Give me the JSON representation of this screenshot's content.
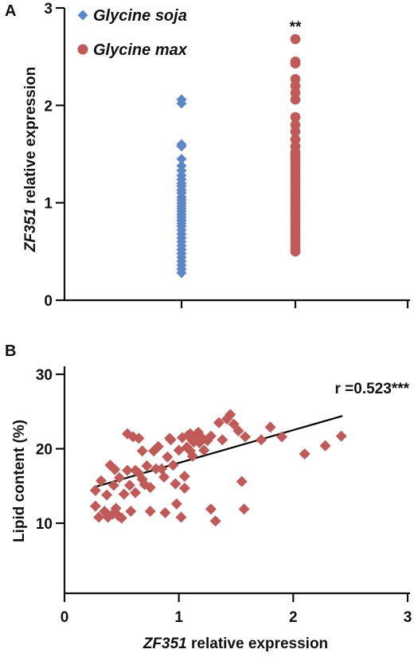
{
  "chart_data": [
    {
      "panel": "A",
      "type": "scatter",
      "ylabel_italic": "ZF351",
      "ylabel_rest": " relative expression",
      "ylim": [
        0,
        3
      ],
      "yticks": [
        "0",
        "1",
        "2",
        "3"
      ],
      "legend_position": "top-left",
      "annotation": "**",
      "series": [
        {
          "name": "Glycine soja",
          "marker": "diamond",
          "color": "#5b87c7",
          "values": [
            2.06,
            2.02,
            1.6,
            1.58,
            1.45,
            1.38,
            1.33,
            1.28,
            1.24,
            1.2,
            1.17,
            1.13,
            1.1,
            1.06,
            1.03,
            1.0,
            0.97,
            0.94,
            0.91,
            0.88,
            0.85,
            0.82,
            0.79,
            0.76,
            0.72,
            0.68,
            0.64,
            0.6,
            0.56,
            0.52,
            0.48,
            0.44,
            0.4,
            0.36,
            0.32,
            0.28
          ]
        },
        {
          "name": "Glycine max",
          "marker": "circle",
          "color": "#c05a58",
          "values": [
            2.68,
            2.45,
            2.43,
            2.27,
            2.2,
            2.13,
            2.06,
            1.88,
            1.8,
            1.73,
            1.65,
            1.58,
            1.52,
            1.5,
            1.48,
            1.45,
            1.42,
            1.39,
            1.36,
            1.33,
            1.3,
            1.27,
            1.24,
            1.21,
            1.18,
            1.15,
            1.12,
            1.09,
            1.06,
            1.03,
            1.0,
            0.97,
            0.94,
            0.91,
            0.88,
            0.85,
            0.82,
            0.79,
            0.76,
            0.73,
            0.7,
            0.67,
            0.64,
            0.61,
            0.58,
            0.55,
            0.52,
            0.5
          ]
        }
      ]
    },
    {
      "panel": "B",
      "type": "scatter",
      "xlabel_italic": "ZF351",
      "xlabel_rest": " relative expression",
      "ylabel": "Lipid content (%)",
      "xlim": [
        0,
        3
      ],
      "ylim": [
        7,
        30
      ],
      "xticks": [
        "0",
        "1",
        "2",
        "3"
      ],
      "yticks": [
        "10",
        "20",
        "30"
      ],
      "annotation": "r =0.523***",
      "marker": "diamond",
      "color": "#c05a58",
      "trendline": {
        "x": [
          0.25,
          2.43
        ],
        "y": [
          14.8,
          24.4
        ]
      },
      "points": [
        [
          0.27,
          14.4
        ],
        [
          0.27,
          12.3
        ],
        [
          0.3,
          10.8
        ],
        [
          0.32,
          15.7
        ],
        [
          0.35,
          11.6
        ],
        [
          0.37,
          13.8
        ],
        [
          0.38,
          10.8
        ],
        [
          0.4,
          17.8
        ],
        [
          0.42,
          11.2
        ],
        [
          0.43,
          15.1
        ],
        [
          0.44,
          17.2
        ],
        [
          0.45,
          12.0
        ],
        [
          0.47,
          11.0
        ],
        [
          0.48,
          16.1
        ],
        [
          0.5,
          10.7
        ],
        [
          0.52,
          13.9
        ],
        [
          0.55,
          22.0
        ],
        [
          0.55,
          17.1
        ],
        [
          0.57,
          15.1
        ],
        [
          0.58,
          11.6
        ],
        [
          0.6,
          21.6
        ],
        [
          0.62,
          17.1
        ],
        [
          0.62,
          14.1
        ],
        [
          0.65,
          21.4
        ],
        [
          0.65,
          16.7
        ],
        [
          0.68,
          19.7
        ],
        [
          0.68,
          15.9
        ],
        [
          0.7,
          15.2
        ],
        [
          0.72,
          17.7
        ],
        [
          0.75,
          14.8
        ],
        [
          0.75,
          11.6
        ],
        [
          0.78,
          19.7
        ],
        [
          0.8,
          17.3
        ],
        [
          0.82,
          20.3
        ],
        [
          0.85,
          17.3
        ],
        [
          0.87,
          16.2
        ],
        [
          0.88,
          11.4
        ],
        [
          0.9,
          18.9
        ],
        [
          0.92,
          21.4
        ],
        [
          0.93,
          21.2
        ],
        [
          0.95,
          17.8
        ],
        [
          0.97,
          15.3
        ],
        [
          0.98,
          12.6
        ],
        [
          1.0,
          19.8
        ],
        [
          1.02,
          10.8
        ],
        [
          1.03,
          21.5
        ],
        [
          1.05,
          16.3
        ],
        [
          1.05,
          14.7
        ],
        [
          1.07,
          20.2
        ],
        [
          1.08,
          21.8
        ],
        [
          1.1,
          22.0
        ],
        [
          1.1,
          19.7
        ],
        [
          1.12,
          21.1
        ],
        [
          1.12,
          19.0
        ],
        [
          1.13,
          20.9
        ],
        [
          1.15,
          21.9
        ],
        [
          1.17,
          22.2
        ],
        [
          1.18,
          20.8
        ],
        [
          1.2,
          21.5
        ],
        [
          1.22,
          19.8
        ],
        [
          1.25,
          21.1
        ],
        [
          1.28,
          21.7
        ],
        [
          1.28,
          11.9
        ],
        [
          1.32,
          10.3
        ],
        [
          1.35,
          23.5
        ],
        [
          1.38,
          21.2
        ],
        [
          1.42,
          24.0
        ],
        [
          1.45,
          24.6
        ],
        [
          1.48,
          23.3
        ],
        [
          1.52,
          22.4
        ],
        [
          1.55,
          15.6
        ],
        [
          1.57,
          11.9
        ],
        [
          1.58,
          21.6
        ],
        [
          1.72,
          21.2
        ],
        [
          1.8,
          22.9
        ],
        [
          1.9,
          21.6
        ],
        [
          2.1,
          19.3
        ],
        [
          2.28,
          20.4
        ],
        [
          2.42,
          21.7
        ]
      ]
    }
  ]
}
